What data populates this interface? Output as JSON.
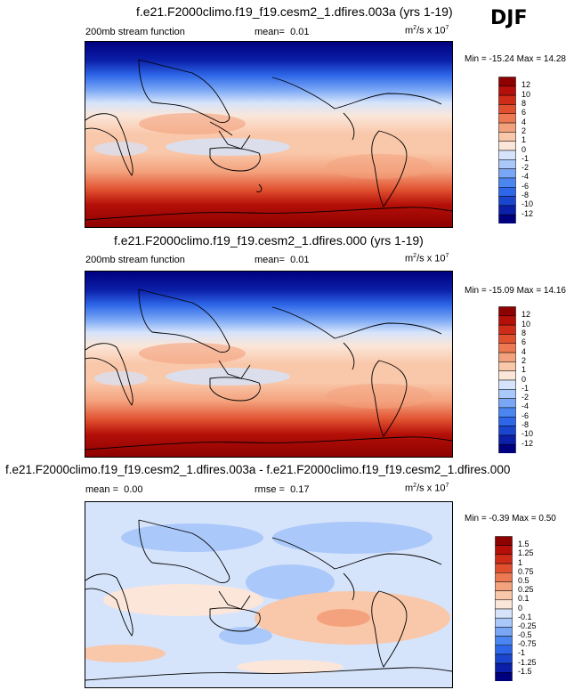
{
  "season": "DJF",
  "colors": {
    "full": [
      "#00007f",
      "#0b1fa8",
      "#1a45cf",
      "#2d66e8",
      "#4b86f0",
      "#7aa7f5",
      "#aac8f9",
      "#d6e4fb",
      "#fbe6d9",
      "#f9c7a9",
      "#f4a27d",
      "#ec7952",
      "#e0502f",
      "#cf2c17",
      "#b40f08",
      "#8d0101"
    ],
    "diff": [
      "#00007f",
      "#0b1fa8",
      "#1a45cf",
      "#2d66e8",
      "#4b86f0",
      "#7aa7f5",
      "#aac8f9",
      "#d6e4fb",
      "#fbe6d9",
      "#f9c7a9",
      "#f4a27d",
      "#ec7952",
      "#e0502f",
      "#cf2c17",
      "#b40f08",
      "#8d0101"
    ]
  },
  "panels": [
    {
      "title": "f.e21.F2000climo.f19_f19.cesm2_1.dfires.003a (yrs 1-19)",
      "variable": "200mb stream function",
      "mean_label": "mean=",
      "mean_value": "0.01",
      "units_main": "m",
      "units_sup1": "2",
      "units_mid": "/s x 10",
      "units_sup2": "7",
      "minmax": "Min = -15.24 Max =  14.28",
      "colorbar": [
        "12",
        "10",
        "8",
        "6",
        "4",
        "2",
        "1",
        "0",
        "-1",
        "-2",
        "-4",
        "-6",
        "-8",
        "-10",
        "-12"
      ]
    },
    {
      "title": "f.e21.F2000climo.f19_f19.cesm2_1.dfires.000 (yrs 1-19)",
      "variable": "200mb stream function",
      "mean_label": "mean=",
      "mean_value": "0.01",
      "units_main": "m",
      "units_sup1": "2",
      "units_mid": "/s x 10",
      "units_sup2": "7",
      "minmax": "Min = -15.09 Max =  14.16",
      "colorbar": [
        "12",
        "10",
        "8",
        "6",
        "4",
        "2",
        "1",
        "0",
        "-1",
        "-2",
        "-4",
        "-6",
        "-8",
        "-10",
        "-12"
      ]
    },
    {
      "title": "f.e21.F2000climo.f19_f19.cesm2_1.dfires.003a - f.e21.F2000climo.f19_f19.cesm2_1.dfires.000",
      "mean_label": "mean =",
      "mean_value": "0.00",
      "rmse_label": "rmse =",
      "rmse_value": "0.17",
      "units_main": "m",
      "units_sup1": "2",
      "units_mid": "/s x 10",
      "units_sup2": "7",
      "minmax": "Min = -0.39 Max =  0.50",
      "colorbar": [
        "1.5",
        "1.25",
        "1",
        "0.75",
        "0.5",
        "0.25",
        "0.1",
        "0",
        "-0.1",
        "-0.25",
        "-0.5",
        "-0.75",
        "-1",
        "-1.25",
        "-1.5"
      ]
    }
  ],
  "chart_data": [
    {
      "type": "heatmap",
      "title": "f.e21.F2000climo.f19_f19.cesm2_1.dfires.003a (yrs 1-19)",
      "field": "200mb stream function",
      "units": "m2/s x 10^7",
      "mean": 0.01,
      "min": -15.24,
      "max": 14.28,
      "levels": [
        -12,
        -10,
        -8,
        -6,
        -4,
        -2,
        -1,
        0,
        1,
        2,
        4,
        6,
        8,
        10,
        12
      ]
    },
    {
      "type": "heatmap",
      "title": "f.e21.F2000climo.f19_f19.cesm2_1.dfires.000 (yrs 1-19)",
      "field": "200mb stream function",
      "units": "m2/s x 10^7",
      "mean": 0.01,
      "min": -15.09,
      "max": 14.16,
      "levels": [
        -12,
        -10,
        -8,
        -6,
        -4,
        -2,
        -1,
        0,
        1,
        2,
        4,
        6,
        8,
        10,
        12
      ]
    },
    {
      "type": "heatmap",
      "title": "f.e21.F2000climo.f19_f19.cesm2_1.dfires.003a - f.e21.F2000climo.f19_f19.cesm2_1.dfires.000",
      "units": "m2/s x 10^7",
      "mean": 0.0,
      "rmse": 0.17,
      "min": -0.39,
      "max": 0.5,
      "levels": [
        -1.5,
        -1.25,
        -1,
        -0.75,
        -0.5,
        -0.25,
        -0.1,
        0,
        0.1,
        0.25,
        0.5,
        0.75,
        1,
        1.25,
        1.5
      ]
    }
  ]
}
